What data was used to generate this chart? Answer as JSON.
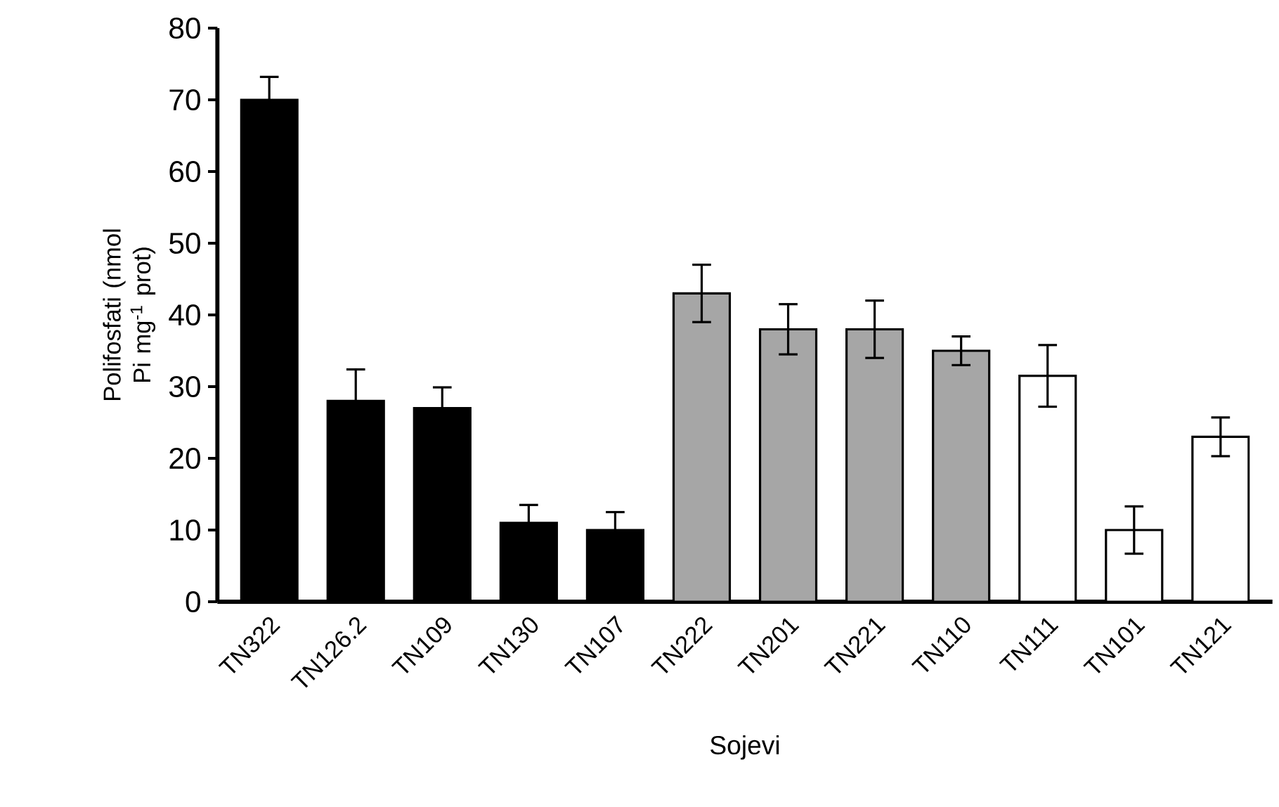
{
  "chart_data": {
    "type": "bar",
    "xlabel": "Sojevi",
    "ylabel": "Polifosfati (nmol Pi mg$^{-1}$ prot)",
    "categories": [
      "TN322",
      "TN126.2",
      "TN109",
      "TN130",
      "TN107",
      "TN222",
      "TN201",
      "TN221",
      "TN110",
      "TN111",
      "TN101",
      "TN121"
    ],
    "values": [
      70,
      28,
      27,
      11,
      10,
      43,
      38,
      38,
      35,
      31.5,
      10,
      23
    ],
    "errors": [
      3.2,
      4.4,
      2.9,
      2.5,
      2.5,
      4,
      3.5,
      4,
      2,
      4.3,
      3.3,
      2.7
    ],
    "colors": [
      "#000000",
      "#000000",
      "#000000",
      "#000000",
      "#000000",
      "#a6a6a6",
      "#a6a6a6",
      "#a6a6a6",
      "#a6a6a6",
      "#ffffff",
      "#ffffff",
      "#ffffff"
    ],
    "ylim": [
      0,
      80
    ],
    "yticks": [
      0,
      10,
      20,
      30,
      40,
      50,
      60,
      70,
      80
    ],
    "grid": false
  }
}
